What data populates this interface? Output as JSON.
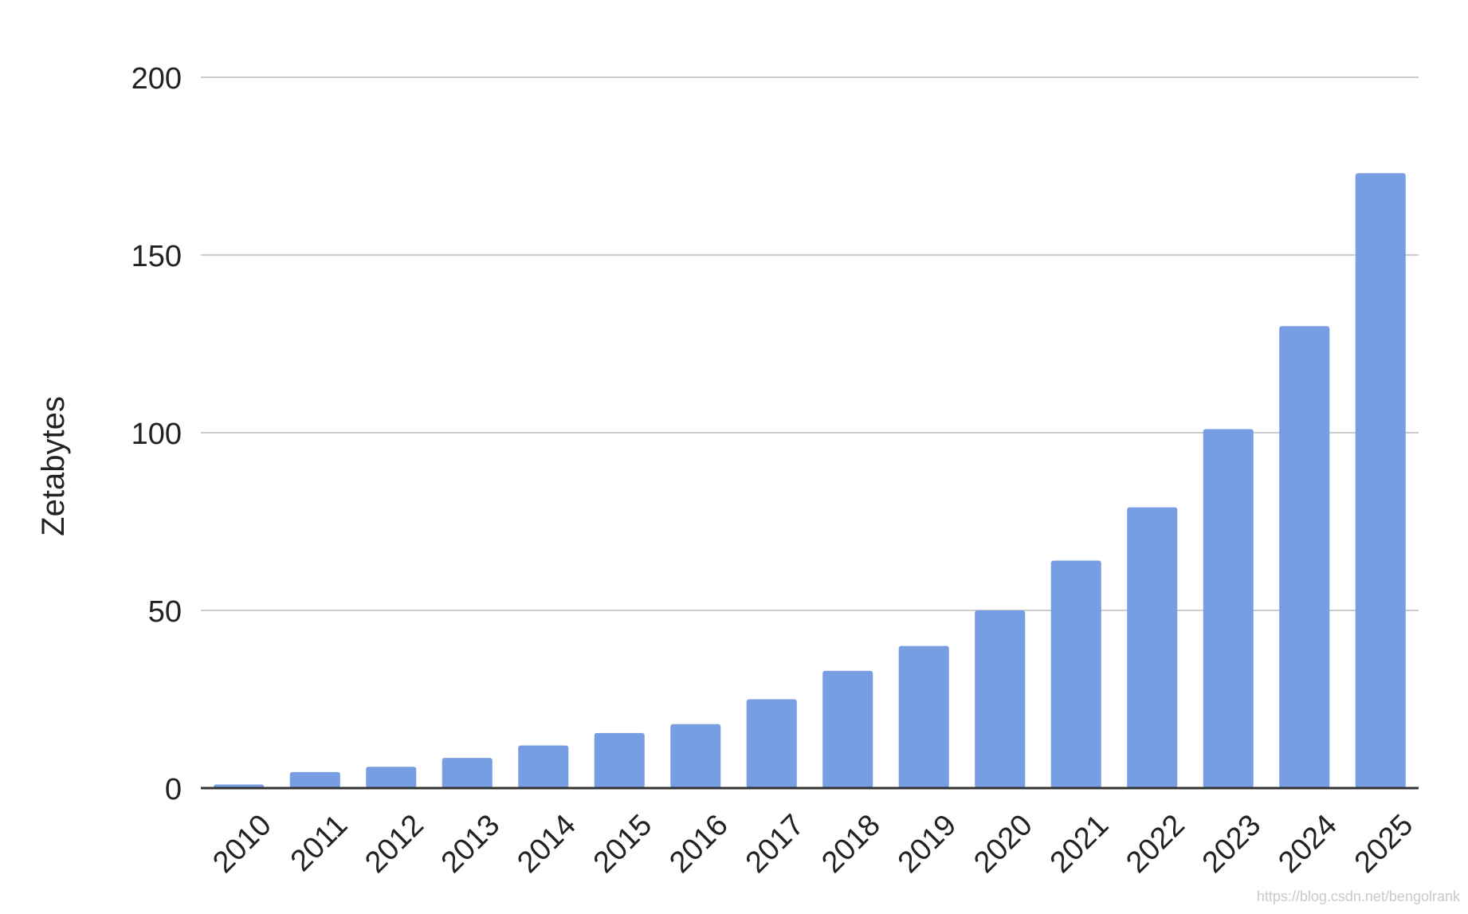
{
  "chart_data": {
    "type": "bar",
    "title": "",
    "xlabel": "",
    "ylabel": "Zetabytes",
    "categories": [
      "2010",
      "2011",
      "2012",
      "2013",
      "2014",
      "2015",
      "2016",
      "2017",
      "2018",
      "2019",
      "2020",
      "2021",
      "2022",
      "2023",
      "2024",
      "2025"
    ],
    "values": [
      1,
      4.5,
      6,
      8.5,
      12,
      15.5,
      18,
      25,
      33,
      40,
      50,
      64,
      79,
      101,
      130,
      173
    ],
    "ylim": [
      0,
      200
    ],
    "yticks": [
      "0",
      "50",
      "100",
      "150",
      "200"
    ],
    "grid": true,
    "legend": "none",
    "colors": {
      "bar": "#779ee3",
      "grid": "#cccccc",
      "axis": "#333333",
      "text": "#222222"
    }
  },
  "watermark": "https://blog.csdn.net/bengolrank"
}
